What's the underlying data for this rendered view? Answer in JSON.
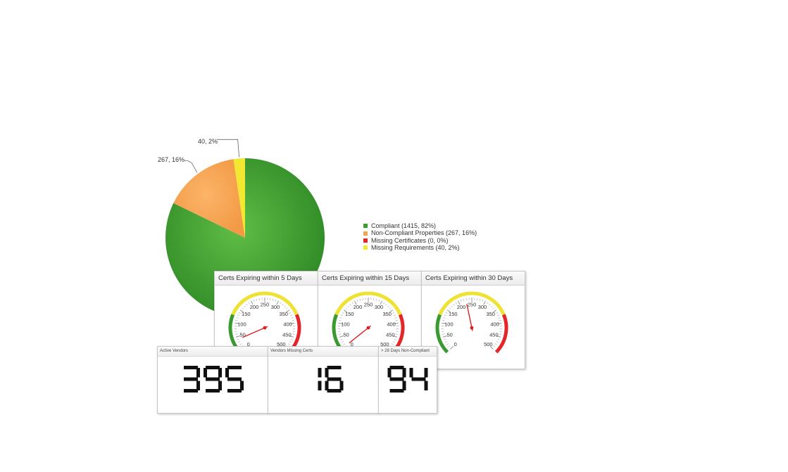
{
  "chart_data": [
    {
      "type": "pie",
      "slices": [
        {
          "label": "Compliant",
          "value": 1415,
          "percent": 82,
          "color": "#3c9c2e"
        },
        {
          "label": "Non-Compliant Properties",
          "value": 267,
          "percent": 16,
          "color": "#f7a24f"
        },
        {
          "label": "Missing Certificates",
          "value": 0,
          "percent": 0,
          "color": "#e3262a"
        },
        {
          "label": "Missing Requirements",
          "value": 40,
          "percent": 2,
          "color": "#f2e731"
        }
      ],
      "callouts": [
        "267, 16%",
        "40, 2%"
      ],
      "legend": [
        "Compliant (1415, 82%)",
        "Non-Compliant Properties (267, 16%)",
        "Missing Certificates (0, 0%)",
        "Missing Requirements (40, 2%)"
      ],
      "legend_position": "right"
    },
    {
      "type": "gauge",
      "title": "Certs Expiring within 5 Days",
      "min": 0,
      "max": 500,
      "value": 40,
      "ticks": [
        "0",
        "50",
        "100",
        "150",
        "200",
        "250",
        "300",
        "350",
        "400",
        "450",
        "500"
      ],
      "bands": [
        {
          "from": 0,
          "to": 125,
          "color": "#3a9a2f"
        },
        {
          "from": 125,
          "to": 375,
          "color": "#eee335"
        },
        {
          "from": 375,
          "to": 500,
          "color": "#e3262a"
        }
      ]
    },
    {
      "type": "gauge",
      "title": "Certs Expiring within 15 Days",
      "min": 0,
      "max": 500,
      "value": 12,
      "ticks": [
        "0",
        "50",
        "100",
        "150",
        "200",
        "250",
        "300",
        "350",
        "400",
        "450",
        "500"
      ],
      "bands": [
        {
          "from": 0,
          "to": 125,
          "color": "#3a9a2f"
        },
        {
          "from": 125,
          "to": 375,
          "color": "#eee335"
        },
        {
          "from": 375,
          "to": 500,
          "color": "#e3262a"
        }
      ]
    },
    {
      "type": "gauge",
      "title": "Certs Expiring within 30 Days",
      "min": 0,
      "max": 500,
      "value": 228,
      "ticks": [
        "0",
        "50",
        "100",
        "150",
        "200",
        "250",
        "300",
        "350",
        "400",
        "450",
        "500"
      ],
      "bands": [
        {
          "from": 0,
          "to": 125,
          "color": "#3a9a2f"
        },
        {
          "from": 125,
          "to": 375,
          "color": "#eee335"
        },
        {
          "from": 375,
          "to": 500,
          "color": "#e3262a"
        }
      ]
    }
  ],
  "kpis": [
    {
      "title": "Active Vendors",
      "value": "395"
    },
    {
      "title": "Vendors Missing Certs",
      "value": "16"
    },
    {
      "title": "> 28 Days Non-Compliant",
      "value": "94"
    }
  ]
}
